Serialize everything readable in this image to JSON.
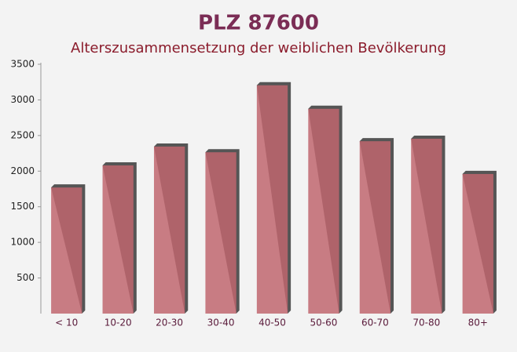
{
  "chart_data": {
    "type": "bar",
    "title": "PLZ 87600",
    "subtitle": "Alterszusammensetzung der weiblichen Bevölkerung",
    "categories": [
      "< 10",
      "10-20",
      "20-30",
      "30-40",
      "40-50",
      "50-60",
      "60-70",
      "70-80",
      "80+"
    ],
    "values": [
      1770,
      2080,
      2345,
      2265,
      3205,
      2875,
      2420,
      2455,
      1960
    ],
    "color": "#c0666f",
    "ylim": [
      0,
      3500
    ],
    "yticks": [
      500,
      1000,
      1500,
      2000,
      2500,
      3000,
      3500
    ],
    "grid": false
  }
}
